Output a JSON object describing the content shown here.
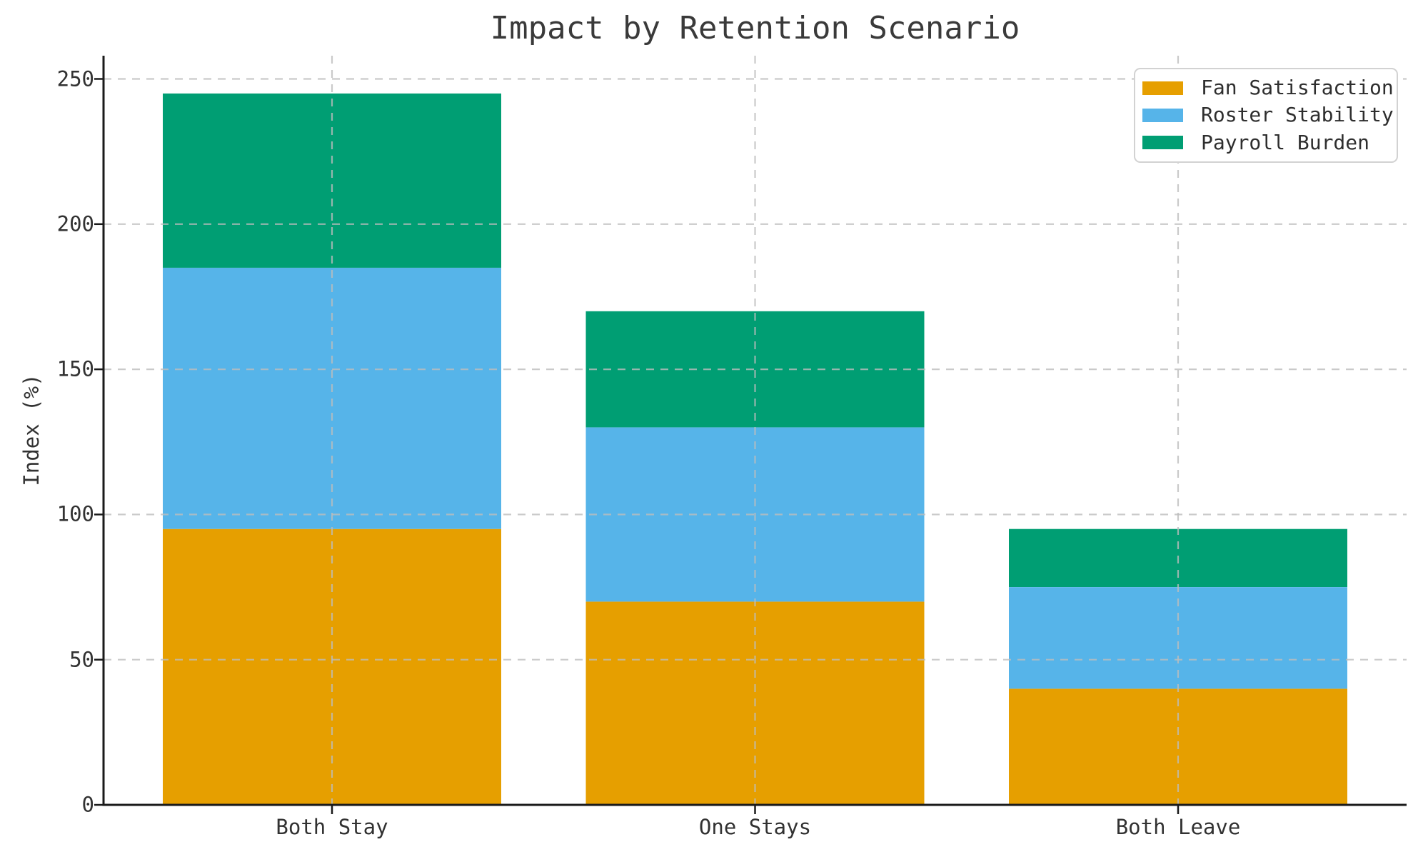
{
  "figure": {
    "background": "#ffffff",
    "text_color": "#323232",
    "spine_color": "#1a1a1a",
    "grid_color": "#bdbdbd"
  },
  "chart_data": {
    "type": "bar",
    "stacked": true,
    "title": "Impact by Retention Scenario",
    "xlabel": "",
    "ylabel": "Index (%)",
    "categories": [
      "Both Stay",
      "One Stays",
      "Both Leave"
    ],
    "series": [
      {
        "name": "Fan Satisfaction",
        "color": "#E69F00",
        "values": [
          95,
          70,
          40
        ]
      },
      {
        "name": "Roster Stability",
        "color": "#56B4E9",
        "values": [
          90,
          60,
          35
        ]
      },
      {
        "name": "Payroll Burden",
        "color": "#009E73",
        "values": [
          60,
          40,
          20
        ]
      }
    ],
    "stack_totals": [
      245,
      170,
      95
    ],
    "yticks": [
      0,
      50,
      100,
      150,
      200,
      250
    ],
    "ylim": [
      0,
      258
    ],
    "bar_width_fraction": 0.8,
    "grid": {
      "visible": true,
      "style": "dashed",
      "axes": "both",
      "above_bars": true
    },
    "legend": {
      "position": "upper right",
      "entries": [
        "Fan Satisfaction",
        "Roster Stability",
        "Payroll Burden"
      ]
    }
  }
}
